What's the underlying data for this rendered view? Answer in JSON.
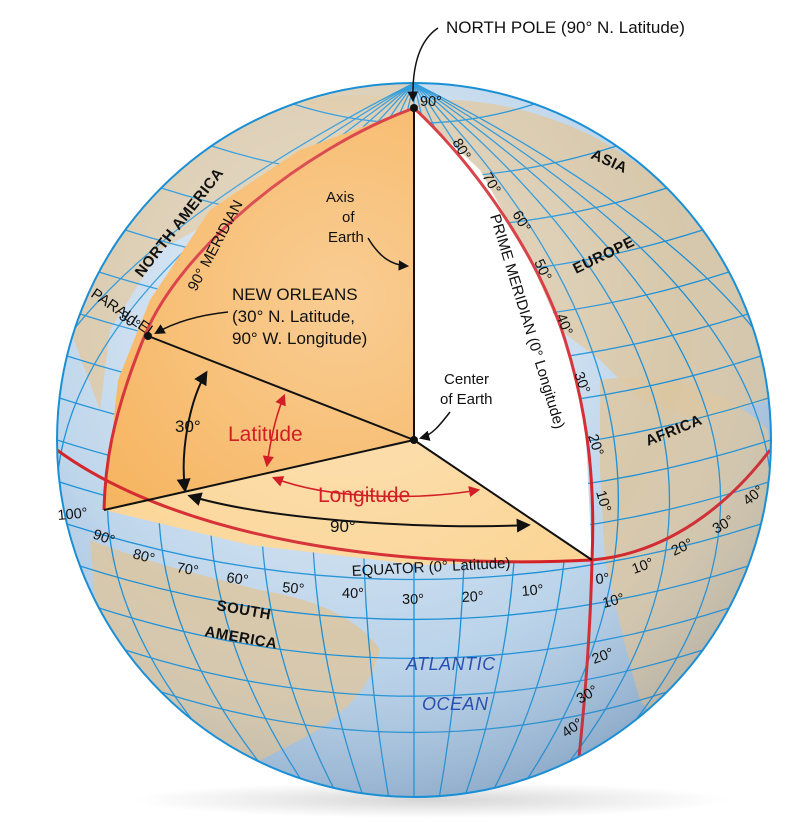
{
  "title": "NORTH POLE (90° N. Latitude)",
  "labels": {
    "north_pole_deg": "90°",
    "axis": [
      "Axis",
      "of",
      "Earth"
    ],
    "center": [
      "Center",
      "of Earth"
    ],
    "new_orleans": [
      "NEW ORLEANS",
      "(30° N. Latitude,",
      "90° W. Longitude)"
    ],
    "meridian_90": "90° MERIDIAN",
    "prime_meridian": "PRIME MERIDIAN (0° Longitude)",
    "parallel": "PARALLEL",
    "parallel_deg": "30°",
    "latitude": "Latitude",
    "longitude": "Longitude",
    "angle_30": "30°",
    "angle_90": "90°",
    "equator": "EQUATOR (0° Latitude)"
  },
  "continents": {
    "north_america": "NORTH AMERICA",
    "asia": "ASIA",
    "europe": "EUROPE",
    "africa": "AFRICA",
    "south_america_1": "SOUTH",
    "south_america_2": "AMERICA"
  },
  "ocean": [
    "ATLANTIC",
    "OCEAN"
  ],
  "prime_meridian_lat_ticks": [
    "80°",
    "70°",
    "60°",
    "50°",
    "40°",
    "30°",
    "20°",
    "10°"
  ],
  "south_lat_ticks": [
    "10°",
    "20°",
    "30°",
    "40°"
  ],
  "equator_west_ticks": [
    "100°",
    "90°",
    "80°",
    "70°",
    "60°",
    "50°",
    "40°",
    "30°",
    "20°",
    "10°"
  ],
  "equator_east_ticks": [
    "0°",
    "10°",
    "20°",
    "30°",
    "40°"
  ],
  "colors": {
    "ocean": "#b9d3ec",
    "land": "#dcc6a0",
    "grid": "#1a8fd6",
    "highlight_line": "#d21f26",
    "wedge_dark": "#f6b25a",
    "wedge_light": "#fbd596"
  }
}
